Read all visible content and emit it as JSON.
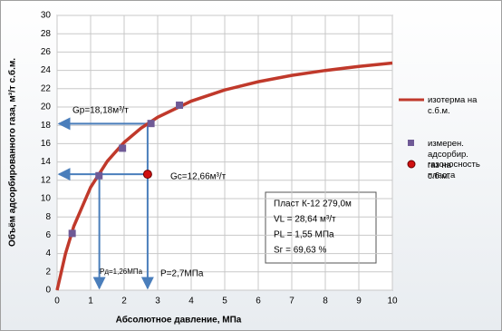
{
  "chart_data": {
    "type": "line",
    "xlabel": "Абсолютное давление, МПа",
    "ylabel": "Объём адсорбированного газа, м³/т с.б.м.",
    "xlim": [
      0,
      10
    ],
    "ylim": [
      0,
      30
    ],
    "xticks": [
      0,
      1,
      2,
      3,
      4,
      5,
      6,
      7,
      8,
      9,
      10
    ],
    "yticks": [
      0,
      2,
      4,
      6,
      8,
      10,
      12,
      14,
      16,
      18,
      20,
      22,
      24,
      26,
      28,
      30
    ],
    "grid": true,
    "series": [
      {
        "name": "изотерма на с.б.м.",
        "color": "#c0392b",
        "marker": "none",
        "x": [
          0,
          0.25,
          0.5,
          1,
          1.5,
          2,
          2.5,
          3,
          4,
          5,
          6,
          7,
          8,
          9,
          10
        ],
        "values": [
          0,
          3.98,
          6.99,
          11.23,
          14.09,
          16.14,
          17.68,
          18.88,
          20.64,
          21.86,
          22.76,
          23.45,
          23.99,
          24.43,
          24.8
        ]
      },
      {
        "name": "измерен. адсорбир. газ на с.б.м.",
        "color": "#6f5a96",
        "marker": "square",
        "x": [
          0.45,
          1.25,
          1.95,
          2.8,
          3.65
        ],
        "values": [
          6.2,
          12.5,
          15.5,
          18.2,
          20.2
        ]
      },
      {
        "name": "газоносность пласта",
        "color": "#d01010",
        "marker": "circle",
        "x": [
          2.7
        ],
        "values": [
          12.66
        ]
      }
    ],
    "guides": [
      {
        "x": 2.7,
        "y": 18.18,
        "y_label": "Gp=18,18м³/т",
        "x_label": "P=2,7МПа"
      },
      {
        "x": 1.26,
        "y": 12.66,
        "y_label": "Gc=12,66м³/т",
        "x_label": "Pд=1,26МПа"
      }
    ],
    "info_box": [
      "Пласт К-12  279,0м",
      "VL = 28,64 м³/т",
      "PL = 1,55 МПа",
      "Sг = 69,63 %"
    ]
  }
}
